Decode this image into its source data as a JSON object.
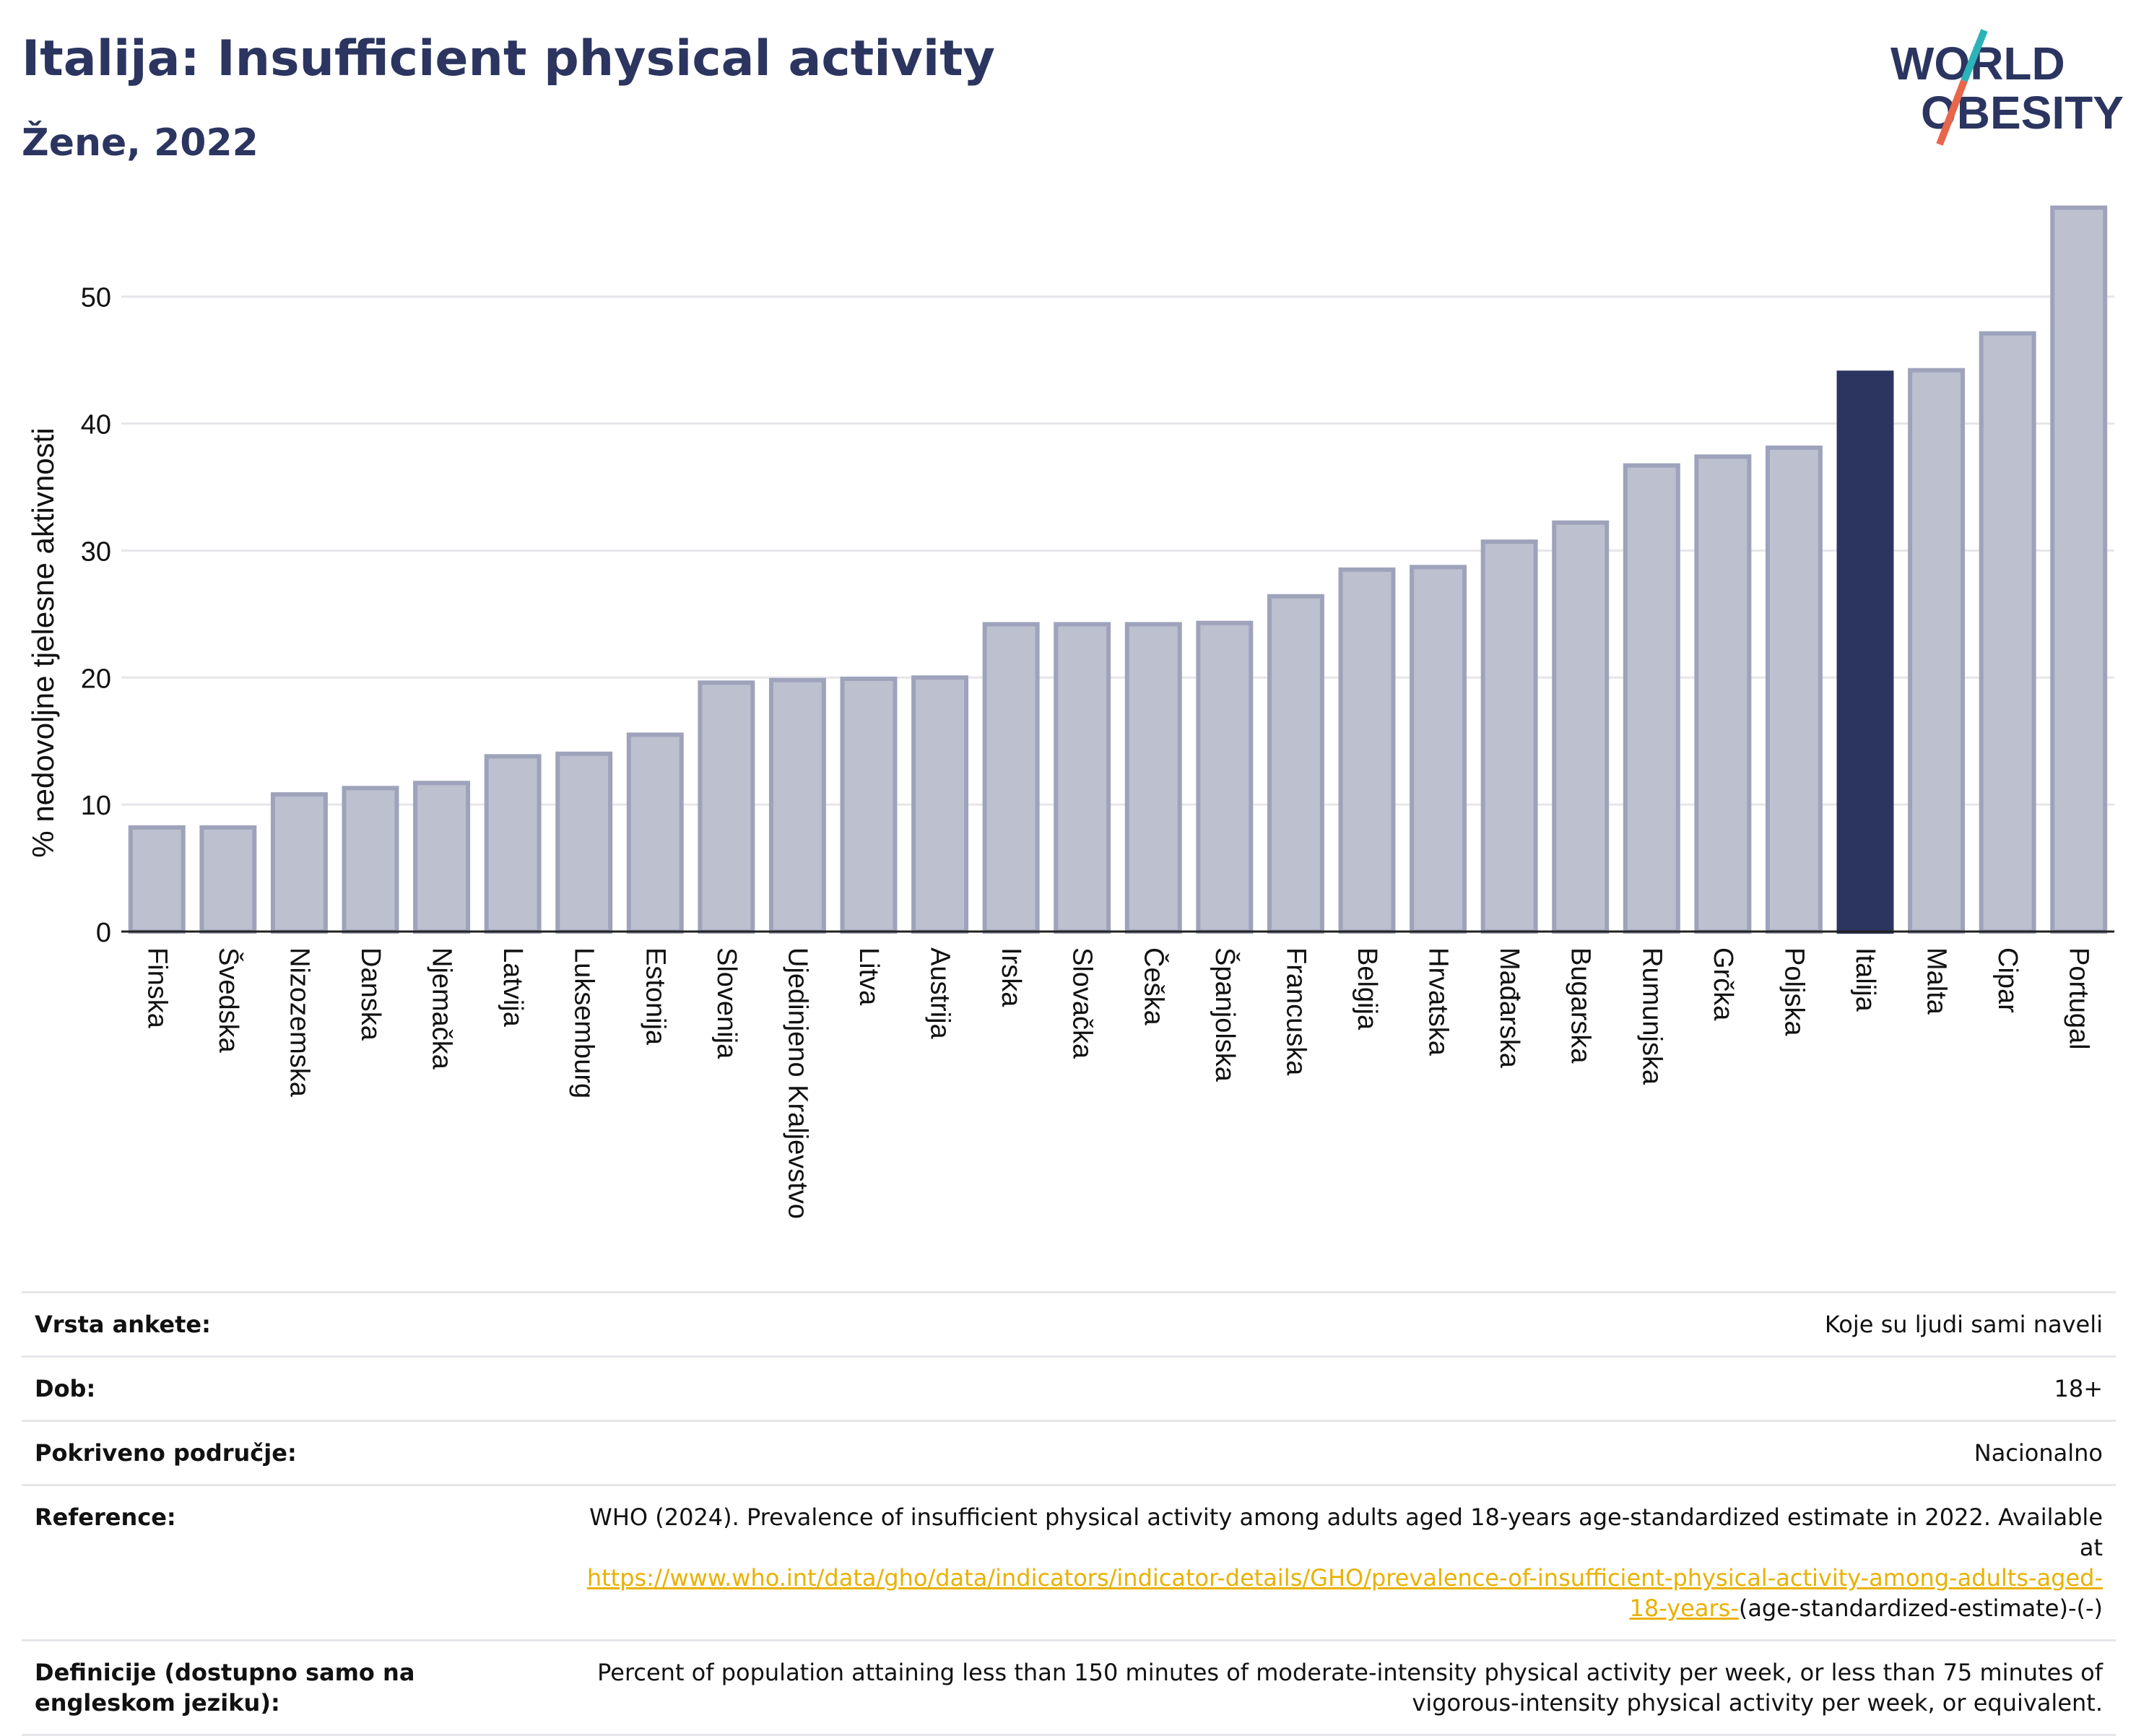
{
  "header": {
    "title": "Italija: Insufficient physical activity",
    "subtitle": "Žene, 2022",
    "logo_line1": "WORLD",
    "logo_line2": "OBESITY"
  },
  "colors": {
    "primary": "#2b3560",
    "bar": "#bcc0cf",
    "bar_border": "#9ea3bb",
    "highlight": "#2b3560",
    "logo_slash_top": "#2bb3b8",
    "logo_slash_bottom": "#e8664c",
    "link": "#e8b100"
  },
  "chart_data": {
    "type": "bar",
    "title": "Italija: Insufficient physical activity",
    "subtitle": "Žene, 2022",
    "ylabel": "% nedovoljne tjelesne aktivnosti",
    "xlabel": "",
    "ylim": [
      0,
      58
    ],
    "yticks": [
      0,
      10,
      20,
      30,
      40,
      50
    ],
    "grid": true,
    "highlight": "Italija",
    "categories": [
      "Finska",
      "Švedska",
      "Nizozemska",
      "Danska",
      "Njemačka",
      "Latvija",
      "Luksemburg",
      "Estonija",
      "Slovenija",
      "Ujedinjeno Kraljevstvo",
      "Litva",
      "Austrija",
      "Irska",
      "Slovačka",
      "Češka",
      "Španjolska",
      "Francuska",
      "Belgija",
      "Hrvatska",
      "Mađarska",
      "Bugarska",
      "Rumunjska",
      "Grčka",
      "Poljska",
      "Italija",
      "Malta",
      "Cipar",
      "Portugal"
    ],
    "values": [
      8.2,
      8.2,
      10.8,
      11.3,
      11.7,
      13.8,
      14.0,
      15.5,
      19.6,
      19.8,
      19.9,
      20.0,
      24.2,
      24.2,
      24.2,
      24.3,
      26.4,
      28.5,
      28.7,
      30.7,
      32.2,
      36.7,
      37.4,
      38.1,
      44.0,
      44.2,
      47.1,
      57.0
    ]
  },
  "info": {
    "survey_type": {
      "label": "Vrsta ankete:",
      "value": "Koje su ljudi sami naveli"
    },
    "age": {
      "label": "Dob:",
      "value": "18+"
    },
    "coverage": {
      "label": "Pokriveno područje:",
      "value": "Nacionalno"
    },
    "reference": {
      "label": "Reference:",
      "text": "WHO (2024). Prevalence of insufficient physical activity among adults aged 18-years age-standardized estimate in 2022. Available at",
      "link1": "https://www.who.int/data/gho/data/indicators/indicator-details/GHO/prevalence-of-insufficient-physical-activity-among-adults-aged-",
      "link2": "18-years-",
      "suffix": "(age-standardized-estimate)-(-)"
    },
    "definition": {
      "label": "Definicije (dostupno samo na engleskom jeziku):",
      "value": "Percent of population attaining less than 150 minutes of moderate-intensity physical activity per week, or less than 75 minutes of vigorous-intensity physical activity per week, or equivalent."
    }
  }
}
